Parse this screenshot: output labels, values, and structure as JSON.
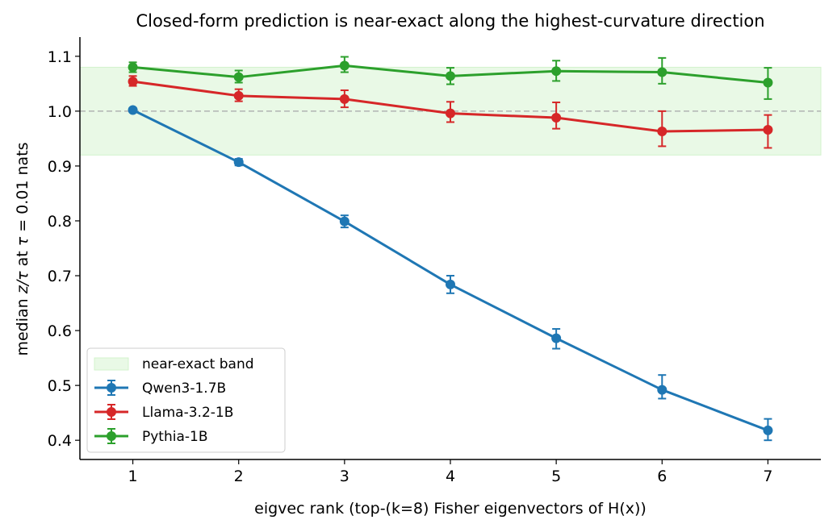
{
  "chart_data": {
    "type": "line",
    "title": "Closed-form prediction is near-exact along the highest-curvature direction",
    "xlabel": "eigvec rank (top-(k=8) Fisher eigenvectors of H(x))",
    "ylabel_parts": [
      "median ",
      "z/τ",
      " at ",
      "τ",
      " = 0.01 nats"
    ],
    "x": [
      1,
      2,
      3,
      4,
      5,
      6,
      7
    ],
    "xlim": [
      0.5,
      7.5
    ],
    "ylim": [
      0.365,
      1.135
    ],
    "x_ticks": [
      "1",
      "2",
      "3",
      "4",
      "5",
      "6",
      "7"
    ],
    "y_ticks": [
      "0.4",
      "0.5",
      "0.6",
      "0.7",
      "0.8",
      "0.9",
      "1.0",
      "1.1"
    ],
    "y_tick_values": [
      0.4,
      0.5,
      0.6,
      0.7,
      0.8,
      0.9,
      1.0,
      1.1
    ],
    "reference_line": 1.0,
    "band": {
      "label": "near-exact band",
      "low": 0.92,
      "high": 1.08,
      "color": "#e9f9e6"
    },
    "grid": false,
    "legend_position": "lower-left",
    "series": [
      {
        "name": "Qwen3-1.7B",
        "color": "#1f77b4",
        "values": [
          1.002,
          0.907,
          0.799,
          0.684,
          0.586,
          0.492,
          0.418
        ],
        "err_low": [
          0.003,
          0.006,
          0.011,
          0.016,
          0.019,
          0.016,
          0.018
        ],
        "err_high": [
          0.003,
          0.006,
          0.011,
          0.016,
          0.017,
          0.027,
          0.021
        ]
      },
      {
        "name": "Llama-3.2-1B",
        "color": "#d62728",
        "values": [
          1.054,
          1.028,
          1.022,
          0.996,
          0.988,
          0.963,
          0.966
        ],
        "err_low": [
          0.008,
          0.01,
          0.015,
          0.016,
          0.02,
          0.027,
          0.033
        ],
        "err_high": [
          0.01,
          0.012,
          0.016,
          0.021,
          0.028,
          0.037,
          0.027
        ]
      },
      {
        "name": "Pythia-1B",
        "color": "#2ca02c",
        "values": [
          1.08,
          1.062,
          1.083,
          1.064,
          1.073,
          1.071,
          1.052
        ],
        "err_low": [
          0.009,
          0.01,
          0.012,
          0.015,
          0.018,
          0.021,
          0.03
        ],
        "err_high": [
          0.009,
          0.012,
          0.016,
          0.015,
          0.019,
          0.026,
          0.027
        ]
      }
    ]
  }
}
